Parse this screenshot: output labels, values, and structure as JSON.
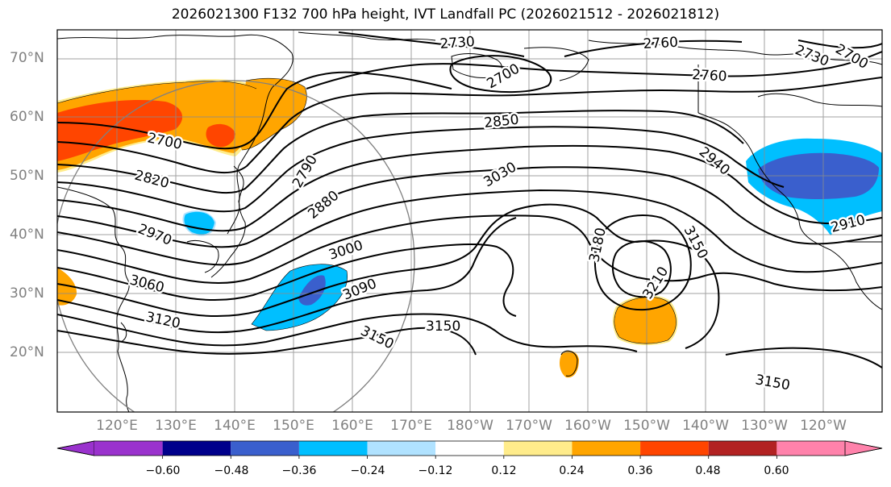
{
  "title": "2026021300 F132 700 hPa height, IVT Landfall PC (2026021512 - 2026021812)",
  "lat_labels": [
    "70°N",
    "60°N",
    "50°N",
    "40°N",
    "30°N",
    "20°N"
  ],
  "lon_labels": [
    "120°E",
    "130°E",
    "140°E",
    "150°E",
    "160°E",
    "170°E",
    "180°W",
    "170°W",
    "160°W",
    "150°W",
    "140°W",
    "130°W",
    "120°W"
  ],
  "contour_labels": [
    "2730",
    "2760",
    "2730",
    "2700",
    "2760",
    "2700",
    "2850",
    "2700",
    "2940",
    "2820",
    "2790",
    "3030",
    "2880",
    "2970",
    "3000",
    "3180",
    "3150",
    "3060",
    "3090",
    "3210",
    "2910",
    "3120",
    "3150",
    "3150",
    "3150"
  ],
  "colorbar": {
    "ticks": [
      "−0.60",
      "−0.48",
      "−0.36",
      "−0.24",
      "−0.12",
      "0.12",
      "0.24",
      "0.36",
      "0.48",
      "0.60"
    ],
    "colors": [
      "#9a32cd",
      "#00008b",
      "#3a5fcd",
      "#00bfff",
      "#b0e2ff",
      "#ffffff",
      "#ffec8b",
      "#ffa500",
      "#ff4500",
      "#b22222",
      "#ff82ab"
    ]
  },
  "shading_colors": {
    "orange": "#ffa500",
    "red_orange": "#ff4500",
    "light_yellow": "#ffec8b",
    "deep_sky_blue": "#00bfff",
    "royal_blue": "#3a5fcd",
    "light_blue": "#b0e2ff"
  }
}
